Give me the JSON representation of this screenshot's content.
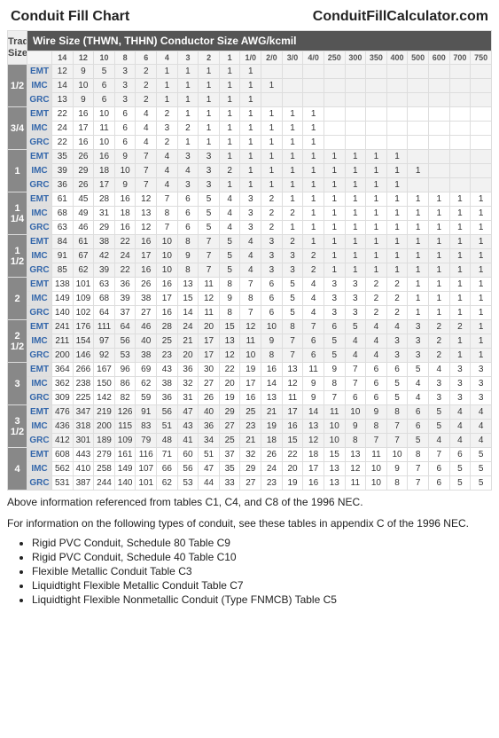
{
  "title_left": "Conduit Fill Chart",
  "title_right": "ConduitFillCalculator.com",
  "trade_label": "Trade\nSize",
  "super_header": "Wire Size (THWN, THHN) Conductor Size AWG/kcmil",
  "wire_cols": [
    "14",
    "12",
    "10",
    "8",
    "6",
    "4",
    "3",
    "2",
    "1",
    "1/0",
    "2/0",
    "3/0",
    "4/0",
    "250",
    "300",
    "350",
    "400",
    "500",
    "600",
    "700",
    "750"
  ],
  "groups": [
    {
      "size": "1/2",
      "rows": [
        {
          "type": "EMT",
          "v": [
            12,
            9,
            5,
            3,
            2,
            1,
            1,
            1,
            1,
            1,
            null,
            null,
            null,
            null,
            null,
            null,
            null,
            null,
            null,
            null,
            null
          ]
        },
        {
          "type": "IMC",
          "v": [
            14,
            10,
            6,
            3,
            2,
            1,
            1,
            1,
            1,
            1,
            1,
            null,
            null,
            null,
            null,
            null,
            null,
            null,
            null,
            null,
            null
          ]
        },
        {
          "type": "GRC",
          "v": [
            13,
            9,
            6,
            3,
            2,
            1,
            1,
            1,
            1,
            1,
            null,
            null,
            null,
            null,
            null,
            null,
            null,
            null,
            null,
            null,
            null
          ]
        }
      ]
    },
    {
      "size": "3/4",
      "rows": [
        {
          "type": "EMT",
          "v": [
            22,
            16,
            10,
            6,
            4,
            2,
            1,
            1,
            1,
            1,
            1,
            1,
            1,
            null,
            null,
            null,
            null,
            null,
            null,
            null,
            null
          ]
        },
        {
          "type": "IMC",
          "v": [
            24,
            17,
            11,
            6,
            4,
            3,
            2,
            1,
            1,
            1,
            1,
            1,
            1,
            null,
            null,
            null,
            null,
            null,
            null,
            null,
            null
          ]
        },
        {
          "type": "GRC",
          "v": [
            22,
            16,
            10,
            6,
            4,
            2,
            1,
            1,
            1,
            1,
            1,
            1,
            1,
            null,
            null,
            null,
            null,
            null,
            null,
            null,
            null
          ]
        }
      ]
    },
    {
      "size": "1",
      "rows": [
        {
          "type": "EMT",
          "v": [
            35,
            26,
            16,
            9,
            7,
            4,
            3,
            3,
            1,
            1,
            1,
            1,
            1,
            1,
            1,
            1,
            1,
            null,
            null,
            null,
            null
          ]
        },
        {
          "type": "IMC",
          "v": [
            39,
            29,
            18,
            10,
            7,
            4,
            4,
            3,
            2,
            1,
            1,
            1,
            1,
            1,
            1,
            1,
            1,
            1,
            null,
            null,
            null
          ]
        },
        {
          "type": "GRC",
          "v": [
            36,
            26,
            17,
            9,
            7,
            4,
            3,
            3,
            1,
            1,
            1,
            1,
            1,
            1,
            1,
            1,
            1,
            null,
            null,
            null,
            null
          ]
        }
      ]
    },
    {
      "size": "1\n1/4",
      "rows": [
        {
          "type": "EMT",
          "v": [
            61,
            45,
            28,
            16,
            12,
            7,
            6,
            5,
            4,
            3,
            2,
            1,
            1,
            1,
            1,
            1,
            1,
            1,
            1,
            1,
            1
          ]
        },
        {
          "type": "IMC",
          "v": [
            68,
            49,
            31,
            18,
            13,
            8,
            6,
            5,
            4,
            3,
            2,
            2,
            1,
            1,
            1,
            1,
            1,
            1,
            1,
            1,
            1
          ]
        },
        {
          "type": "GRC",
          "v": [
            63,
            46,
            29,
            16,
            12,
            7,
            6,
            5,
            4,
            3,
            2,
            1,
            1,
            1,
            1,
            1,
            1,
            1,
            1,
            1,
            1
          ]
        }
      ]
    },
    {
      "size": "1\n1/2",
      "rows": [
        {
          "type": "EMT",
          "v": [
            84,
            61,
            38,
            22,
            16,
            10,
            8,
            7,
            5,
            4,
            3,
            2,
            1,
            1,
            1,
            1,
            1,
            1,
            1,
            1,
            1
          ]
        },
        {
          "type": "IMC",
          "v": [
            91,
            67,
            42,
            24,
            17,
            10,
            9,
            7,
            5,
            4,
            3,
            3,
            2,
            1,
            1,
            1,
            1,
            1,
            1,
            1,
            1
          ]
        },
        {
          "type": "GRC",
          "v": [
            85,
            62,
            39,
            22,
            16,
            10,
            8,
            7,
            5,
            4,
            3,
            3,
            2,
            1,
            1,
            1,
            1,
            1,
            1,
            1,
            1
          ]
        }
      ]
    },
    {
      "size": "2",
      "rows": [
        {
          "type": "EMT",
          "v": [
            138,
            101,
            63,
            36,
            26,
            16,
            13,
            11,
            8,
            7,
            6,
            5,
            4,
            3,
            3,
            2,
            2,
            1,
            1,
            1,
            1
          ]
        },
        {
          "type": "IMC",
          "v": [
            149,
            109,
            68,
            39,
            38,
            17,
            15,
            12,
            9,
            8,
            6,
            5,
            4,
            3,
            3,
            2,
            2,
            1,
            1,
            1,
            1
          ]
        },
        {
          "type": "GRC",
          "v": [
            140,
            102,
            64,
            37,
            27,
            16,
            14,
            11,
            8,
            7,
            6,
            5,
            4,
            3,
            3,
            2,
            2,
            1,
            1,
            1,
            1
          ]
        }
      ]
    },
    {
      "size": "2\n1/2",
      "rows": [
        {
          "type": "EMT",
          "v": [
            241,
            176,
            111,
            64,
            46,
            28,
            24,
            20,
            15,
            12,
            10,
            8,
            7,
            6,
            5,
            4,
            4,
            3,
            2,
            2,
            1
          ]
        },
        {
          "type": "IMC",
          "v": [
            211,
            154,
            97,
            56,
            40,
            25,
            21,
            17,
            13,
            11,
            9,
            7,
            6,
            5,
            4,
            4,
            3,
            3,
            2,
            1,
            1
          ]
        },
        {
          "type": "GRC",
          "v": [
            200,
            146,
            92,
            53,
            38,
            23,
            20,
            17,
            12,
            10,
            8,
            7,
            6,
            5,
            4,
            4,
            3,
            3,
            2,
            1,
            1
          ]
        }
      ]
    },
    {
      "size": "3",
      "rows": [
        {
          "type": "EMT",
          "v": [
            364,
            266,
            167,
            96,
            69,
            43,
            36,
            30,
            22,
            19,
            16,
            13,
            11,
            9,
            7,
            6,
            6,
            5,
            4,
            3,
            3
          ]
        },
        {
          "type": "IMC",
          "v": [
            362,
            238,
            150,
            86,
            62,
            38,
            32,
            27,
            20,
            17,
            14,
            12,
            9,
            8,
            7,
            6,
            5,
            4,
            3,
            3,
            3
          ]
        },
        {
          "type": "GRC",
          "v": [
            309,
            225,
            142,
            82,
            59,
            36,
            31,
            26,
            19,
            16,
            13,
            11,
            9,
            7,
            6,
            6,
            5,
            4,
            3,
            3,
            3
          ]
        }
      ]
    },
    {
      "size": "3\n1/2",
      "rows": [
        {
          "type": "EMT",
          "v": [
            476,
            347,
            219,
            126,
            91,
            56,
            47,
            40,
            29,
            25,
            21,
            17,
            14,
            11,
            10,
            9,
            8,
            6,
            5,
            4,
            4
          ]
        },
        {
          "type": "IMC",
          "v": [
            436,
            318,
            200,
            115,
            83,
            51,
            43,
            36,
            27,
            23,
            19,
            16,
            13,
            10,
            9,
            8,
            7,
            6,
            5,
            4,
            4
          ]
        },
        {
          "type": "GRC",
          "v": [
            412,
            301,
            189,
            109,
            79,
            48,
            41,
            34,
            25,
            21,
            18,
            15,
            12,
            10,
            8,
            7,
            7,
            5,
            4,
            4,
            4
          ]
        }
      ]
    },
    {
      "size": "4",
      "rows": [
        {
          "type": "EMT",
          "v": [
            608,
            443,
            279,
            161,
            116,
            71,
            60,
            51,
            37,
            32,
            26,
            22,
            18,
            15,
            13,
            11,
            10,
            8,
            7,
            6,
            5
          ]
        },
        {
          "type": "IMC",
          "v": [
            562,
            410,
            258,
            149,
            107,
            66,
            56,
            47,
            35,
            29,
            24,
            20,
            17,
            13,
            12,
            10,
            9,
            7,
            6,
            5,
            5
          ]
        },
        {
          "type": "GRC",
          "v": [
            531,
            387,
            244,
            140,
            101,
            62,
            53,
            44,
            33,
            27,
            23,
            19,
            16,
            13,
            11,
            10,
            8,
            7,
            6,
            5,
            5
          ]
        }
      ]
    }
  ],
  "footnote": "Above information referenced from tables C1, C4, and C8 of the 1996 NEC.",
  "leadline": "For information on the following types of conduit, see these tables in appendix C of the 1996 NEC.",
  "appendix_items": [
    "Rigid PVC Conduit, Schedule 80 Table C9",
    "Rigid PVC Conduit, Schedule 40 Table C10",
    "Flexible Metallic Conduit Table C3",
    "Liquidtight Flexible Metallic Conduit Table C7",
    "Liquidtight Flexible Nonmetallic Conduit (Type FNMCB) Table C5"
  ]
}
